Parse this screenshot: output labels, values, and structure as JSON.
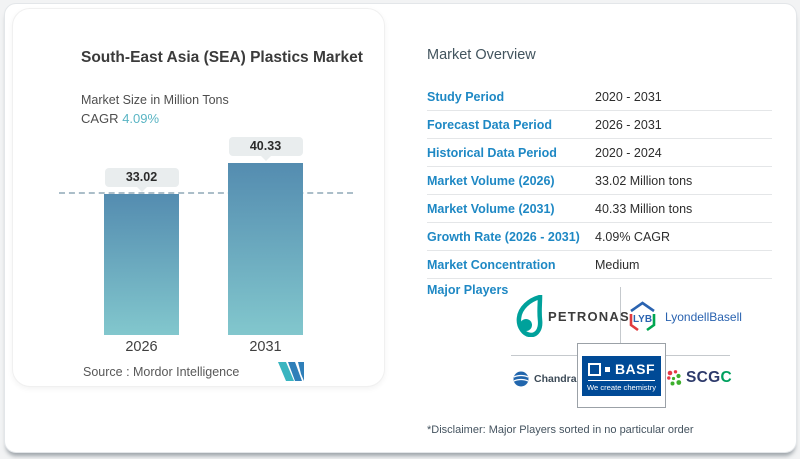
{
  "left_card": {
    "title": "South-East Asia (SEA) Plastics Market",
    "subtitle": "Market Size in Million Tons",
    "cagr_label": "CAGR",
    "cagr_value": "4.09%",
    "source_text": "Source :  Mordor Intelligence",
    "logo_name": "Mordor Intelligence"
  },
  "chart_data": {
    "type": "bar",
    "categories": [
      "2026",
      "2031"
    ],
    "values": [
      33.02,
      40.33
    ],
    "title": "South-East Asia (SEA) Plastics Market",
    "ylabel": "Market Size in Million Tons",
    "data_labels": [
      "33.02",
      "40.33"
    ],
    "reference_line_at": 33.02,
    "ylim": [
      0,
      44
    ],
    "grid": false,
    "legend": "none",
    "bar_colors": {
      "top": "#548cb0",
      "bottom": "#82c7cd"
    }
  },
  "overview": {
    "heading": "Market Overview",
    "rows": [
      {
        "label": "Study Period",
        "value": "2020 - 2031"
      },
      {
        "label": "Forecast Data Period",
        "value": "2026 - 2031"
      },
      {
        "label": "Historical Data Period",
        "value": "2020 - 2024"
      },
      {
        "label": "Market Volume (2026)",
        "value": "33.02 Million tons"
      },
      {
        "label": "Market Volume (2031)",
        "value": "40.33 Million tons"
      },
      {
        "label": "Growth Rate (2026 - 2031)",
        "value": "4.09% CAGR"
      },
      {
        "label": "Market Concentration",
        "value": "Medium"
      }
    ],
    "major_players_label": "Major Players",
    "players": {
      "petronas": {
        "name": "PETRONAS"
      },
      "lyondellbasell": {
        "abbr": "LYB",
        "name": "LyondellBasell"
      },
      "chandra_asri": {
        "name": "Chandra Asri"
      },
      "basf": {
        "name": "BASF",
        "tagline": "We create chemistry"
      },
      "scgc": {
        "name_main": "SCG",
        "name_accent": "C"
      }
    },
    "disclaimer": "*Disclaimer: Major Players sorted in no particular order"
  },
  "colors": {
    "label_blue": "#1e88c4",
    "cagr_teal": "#5ab5c4",
    "heading_slate": "#42545e",
    "basf_blue": "#004a96",
    "petronas_teal": "#00a19b",
    "lyb_blue": "#2a63b0"
  }
}
